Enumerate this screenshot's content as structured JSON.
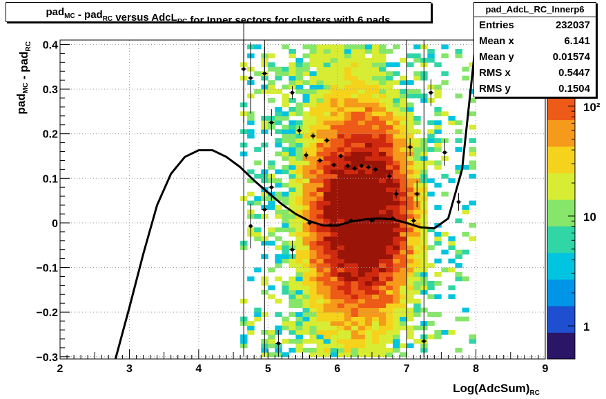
{
  "title": {
    "parts": [
      {
        "t": "pad",
        "s": "MC"
      },
      {
        "t": " - pad",
        "s": "RC"
      },
      {
        "t": " versus AdcL",
        "s": "RC"
      },
      {
        "t": " for Inner sectors for clusters with 6 pads",
        "s": ""
      }
    ]
  },
  "stats": {
    "name": "pad_AdcL_RC_Innerp6",
    "rows": [
      {
        "label": "Entries",
        "value": "232037"
      },
      {
        "label": "Mean x",
        "value": "6.141"
      },
      {
        "label": "Mean y",
        "value": "0.01574"
      },
      {
        "label": "RMS x",
        "value": "0.5447"
      },
      {
        "label": "RMS y",
        "value": "0.1504"
      }
    ]
  },
  "colors": {
    "palette": [
      "#2a1566",
      "#1d4fd0",
      "#0095e8",
      "#00c4e0",
      "#30d6a6",
      "#86e66a",
      "#d7ec32",
      "#f5d21c",
      "#f59a1a",
      "#ee5a17",
      "#cf2a10",
      "#9a1408"
    ]
  },
  "chart_data": {
    "type": "heatmap",
    "xlabel": {
      "t": "Log(AdcSum)",
      "s": "RC"
    },
    "ylabel": {
      "t1": "pad",
      "s1": "MC",
      "t2": " - pad",
      "s2": "RC"
    },
    "xlim": [
      2,
      9
    ],
    "ylim": [
      -0.305,
      0.41
    ],
    "x_ticks": [
      "2",
      "3",
      "4",
      "5",
      "6",
      "7",
      "8",
      "9"
    ],
    "y_ticks": [
      "−0.3",
      "−0.2",
      "−0.1",
      "0",
      "0.1",
      "0.2",
      "0.3",
      "0.4"
    ],
    "y_tick_values": [
      -0.3,
      -0.2,
      -0.1,
      0,
      0.1,
      0.2,
      0.3,
      0.4
    ],
    "grid": true,
    "log_z": true,
    "z_range": [
      0.5,
      400
    ],
    "z_ticks": [
      "1",
      "10",
      "10²"
    ],
    "z_tick_values": [
      1,
      10,
      100
    ],
    "profile": [
      {
        "x": 4.65,
        "y": 0.345,
        "e": 0.12
      },
      {
        "x": 4.75,
        "y": -0.007,
        "e": 0.05
      },
      {
        "x": 4.75,
        "y": 0.325,
        "e": 0.08
      },
      {
        "x": 4.95,
        "y": 0.335,
        "e": 0.06
      },
      {
        "x": 4.95,
        "y": 0.03,
        "e": 0.04
      },
      {
        "x": 5.05,
        "y": 0.225,
        "e": 0.03
      },
      {
        "x": 5.05,
        "y": 0.08,
        "e": 0.03
      },
      {
        "x": 5.15,
        "y": -0.27,
        "e": 0.03
      },
      {
        "x": 5.35,
        "y": -0.06,
        "e": 0.02
      },
      {
        "x": 5.35,
        "y": 0.292,
        "e": 0.015
      },
      {
        "x": 5.45,
        "y": 0.207,
        "e": 0.01
      },
      {
        "x": 5.55,
        "y": 0.152,
        "e": 0.008
      },
      {
        "x": 5.65,
        "y": 0.195,
        "e": 0.008
      },
      {
        "x": 5.75,
        "y": 0.14,
        "e": 0.006
      },
      {
        "x": 5.85,
        "y": 0.185,
        "e": 0.006
      },
      {
        "x": 5.95,
        "y": 0.13,
        "e": 0.005
      },
      {
        "x": 6.05,
        "y": 0.15,
        "e": 0.005
      },
      {
        "x": 6.15,
        "y": 0.128,
        "e": 0.005
      },
      {
        "x": 6.25,
        "y": 0.122,
        "e": 0.005
      },
      {
        "x": 6.35,
        "y": 0.128,
        "e": 0.005
      },
      {
        "x": 6.45,
        "y": 0.125,
        "e": 0.005
      },
      {
        "x": 6.55,
        "y": 0.12,
        "e": 0.006
      },
      {
        "x": 6.75,
        "y": 0.105,
        "e": 0.008
      },
      {
        "x": 6.85,
        "y": 0.065,
        "e": 0.01
      },
      {
        "x": 7.05,
        "y": 0.17,
        "e": 0.02
      },
      {
        "x": 7.15,
        "y": 0.065,
        "e": 0.03
      },
      {
        "x": 7.25,
        "y": -0.265,
        "e": 0.04
      },
      {
        "x": 7.35,
        "y": 0.292,
        "e": 0.03
      },
      {
        "x": 7.55,
        "y": 0.158,
        "e": 0.03
      },
      {
        "x": 7.75,
        "y": 0.047,
        "e": 0.02
      },
      {
        "x": 5.6,
        "y": 0.0,
        "e": 0.005
      },
      {
        "x": 5.9,
        "y": -0.005,
        "e": 0.004
      },
      {
        "x": 6.2,
        "y": 0.005,
        "e": 0.004
      },
      {
        "x": 6.5,
        "y": 0.005,
        "e": 0.004
      },
      {
        "x": 6.8,
        "y": 0.01,
        "e": 0.005
      },
      {
        "x": 7.1,
        "y": 0.005,
        "e": 0.008
      }
    ],
    "fit_curve": {
      "x": [
        2.8,
        3.0,
        3.2,
        3.4,
        3.6,
        3.8,
        4.0,
        4.2,
        4.4,
        4.6,
        4.8,
        5.0,
        5.2,
        5.4,
        5.6,
        5.8,
        6.0,
        6.2,
        6.4,
        6.6,
        6.8,
        7.0,
        7.2,
        7.4,
        7.6,
        7.8,
        8.0
      ],
      "y": [
        -0.305,
        -0.19,
        -0.07,
        0.04,
        0.11,
        0.148,
        0.163,
        0.163,
        0.148,
        0.125,
        0.095,
        0.068,
        0.042,
        0.02,
        0.004,
        -0.006,
        -0.006,
        0.003,
        0.008,
        0.01,
        0.008,
        0.0,
        -0.01,
        -0.012,
        0.01,
        0.12,
        0.41
      ]
    }
  }
}
